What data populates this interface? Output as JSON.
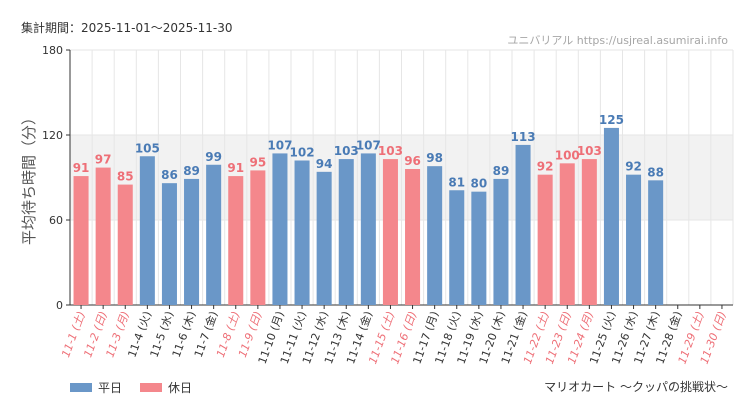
{
  "header": {
    "period": "集計期間：2025-11-01～2025-11-30",
    "watermark": "ユニバリアル  https://usjreal.asumirai.info"
  },
  "footer": {
    "attraction": "マリオカート ～クッパの挑戦状～"
  },
  "legend": {
    "weekday": "平日",
    "holiday": "休日"
  },
  "colors": {
    "weekday": "#6a97c8",
    "holiday": "#f4878c",
    "weekday_text": "#4a7bb5",
    "holiday_text": "#ee6f77",
    "band": "#f2f2f2",
    "grid": "#e6e6e6",
    "axis": "#333333"
  },
  "chart_data": {
    "type": "bar",
    "ylabel": "平均待ち時間（分）",
    "ylim": [
      0,
      180
    ],
    "yticks": [
      0,
      60,
      120,
      180
    ],
    "band": [
      60,
      120
    ],
    "categories": [
      "11-1 (土)",
      "11-2 (日)",
      "11-3 (月)",
      "11-4 (火)",
      "11-5 (水)",
      "11-6 (木)",
      "11-7 (金)",
      "11-8 (土)",
      "11-9 (日)",
      "11-10 (月)",
      "11-11 (火)",
      "11-12 (水)",
      "11-13 (木)",
      "11-14 (金)",
      "11-15 (土)",
      "11-16 (日)",
      "11-17 (月)",
      "11-18 (火)",
      "11-19 (水)",
      "11-20 (木)",
      "11-21 (金)",
      "11-22 (土)",
      "11-23 (日)",
      "11-24 (月)",
      "11-25 (火)",
      "11-26 (水)",
      "11-27 (木)",
      "11-28 (金)",
      "11-29 (土)",
      "11-30 (日)"
    ],
    "values": [
      91,
      97,
      85,
      105,
      86,
      89,
      99,
      91,
      95,
      107,
      102,
      94,
      103,
      107,
      103,
      96,
      98,
      81,
      80,
      89,
      113,
      92,
      100,
      103,
      125,
      92,
      88,
      null,
      null,
      null
    ],
    "day_type": [
      "holiday",
      "holiday",
      "holiday",
      "weekday",
      "weekday",
      "weekday",
      "weekday",
      "holiday",
      "holiday",
      "weekday",
      "weekday",
      "weekday",
      "weekday",
      "weekday",
      "holiday",
      "holiday",
      "weekday",
      "weekday",
      "weekday",
      "weekday",
      "weekday",
      "holiday",
      "holiday",
      "holiday",
      "weekday",
      "weekday",
      "weekday",
      "weekday",
      "holiday",
      "holiday"
    ]
  }
}
